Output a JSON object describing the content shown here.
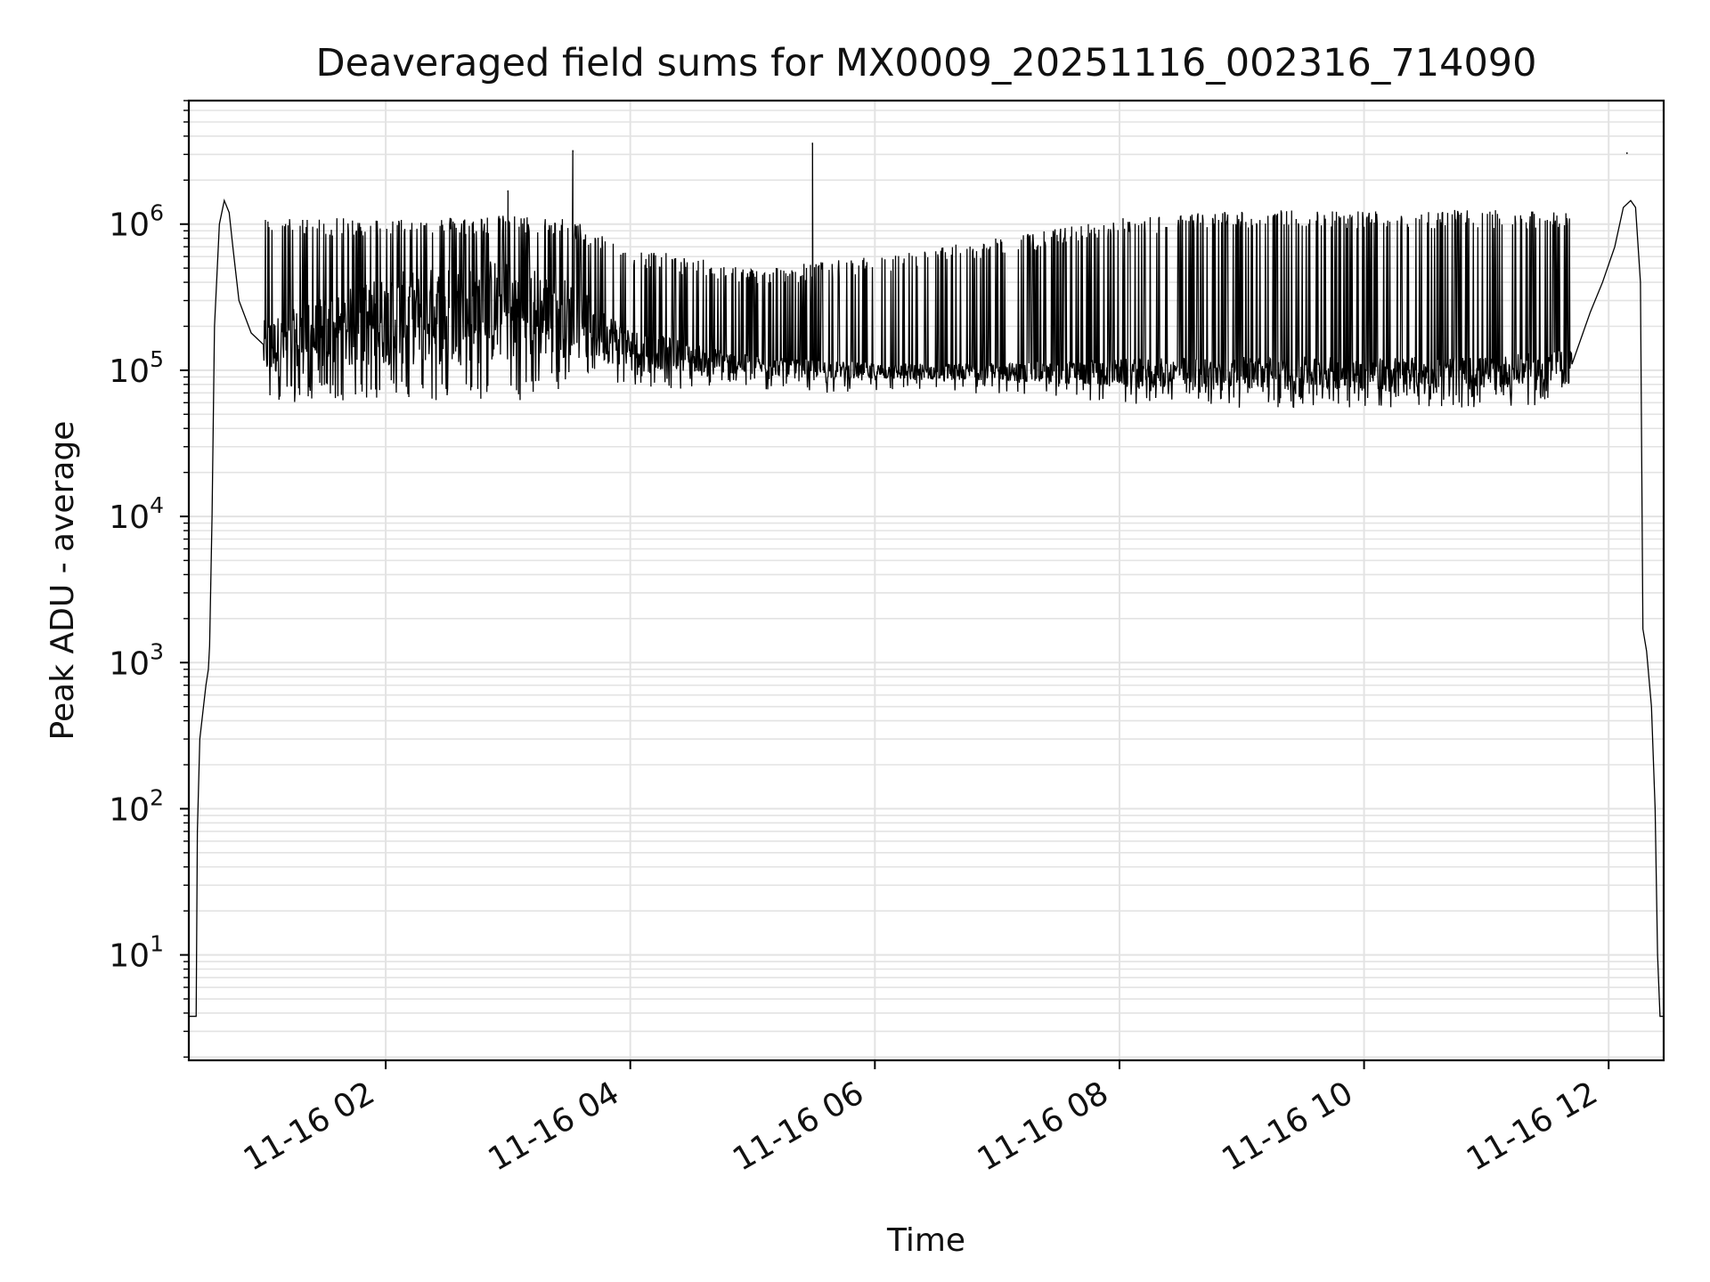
{
  "chart_data": {
    "type": "line",
    "title": "Deaveraged field sums for MX0009_20251116_002316_714090",
    "xlabel": "Time",
    "ylabel": "Peak ADU - average",
    "yscale": "log",
    "ylim": [
      1.9,
      7000000
    ],
    "xlim_hours": [
      0.39,
      12.45
    ],
    "grid": true,
    "line_color": "#000000",
    "grid_color": "#e3e3e3",
    "x_ticks": [
      {
        "label": "11-16 02",
        "hour": 2
      },
      {
        "label": "11-16 04",
        "hour": 4
      },
      {
        "label": "11-16 06",
        "hour": 6
      },
      {
        "label": "11-16 08",
        "hour": 8
      },
      {
        "label": "11-16 10",
        "hour": 10
      },
      {
        "label": "11-16 12",
        "hour": 12
      }
    ],
    "y_ticks": [
      {
        "base": "10",
        "exp": "1",
        "value": 10
      },
      {
        "base": "10",
        "exp": "2",
        "value": 100
      },
      {
        "base": "10",
        "exp": "3",
        "value": 1000
      },
      {
        "base": "10",
        "exp": "4",
        "value": 10000
      },
      {
        "base": "10",
        "exp": "5",
        "value": 100000
      },
      {
        "base": "10",
        "exp": "6",
        "value": 1000000
      }
    ],
    "series": [
      {
        "name": "Peak ADU - average",
        "envelope": {
          "note": "high-frequency oscillation between an upper and lower envelope (values in ADU)",
          "hours": [
            1.0,
            2.0,
            3.0,
            3.5,
            4.0,
            5.0,
            6.0,
            7.0,
            8.0,
            9.0,
            10.0,
            11.0,
            11.7
          ],
          "upper": [
            1100000,
            1100000,
            1150000,
            1100000,
            700000,
            500000,
            600000,
            800000,
            1100000,
            1250000,
            1250000,
            1250000,
            1200000
          ],
          "lower": [
            70000,
            75000,
            70000,
            90000,
            90000,
            85000,
            80000,
            80000,
            70000,
            65000,
            65000,
            65000,
            70000
          ],
          "baseline": [
            150000,
            250000,
            300000,
            250000,
            150000,
            110000,
            100000,
            100000,
            100000,
            100000,
            100000,
            100000,
            110000
          ]
        },
        "spikes": [
          {
            "hour": 3.0,
            "value": 1700000
          },
          {
            "hour": 3.53,
            "value": 3200000
          },
          {
            "hour": 5.49,
            "value": 3600000
          },
          {
            "hour": 12.15,
            "value": 3100000
          }
        ],
        "rise": {
          "hours": [
            0.39,
            0.45,
            0.46,
            0.48,
            0.51,
            0.53,
            0.55,
            0.56,
            0.58,
            0.6,
            0.64,
            0.68,
            0.72,
            0.75,
            0.8,
            0.9,
            1.0
          ],
          "values": [
            3.8,
            3.8,
            70,
            300,
            500,
            700,
            900,
            1300,
            10000,
            200000,
            1000000,
            1450000,
            1200000,
            700000,
            300000,
            180000,
            150000
          ]
        },
        "fall": {
          "hours": [
            11.7,
            11.85,
            11.95,
            12.05,
            12.12,
            12.18,
            12.22,
            12.26,
            12.28,
            12.31,
            12.35,
            12.38,
            12.4,
            12.42,
            12.45
          ],
          "values": [
            110000,
            250000,
            400000,
            700000,
            1300000,
            1450000,
            1300000,
            400000,
            1700,
            1200,
            500,
            100,
            10,
            3.8,
            3.8
          ]
        }
      }
    ]
  }
}
